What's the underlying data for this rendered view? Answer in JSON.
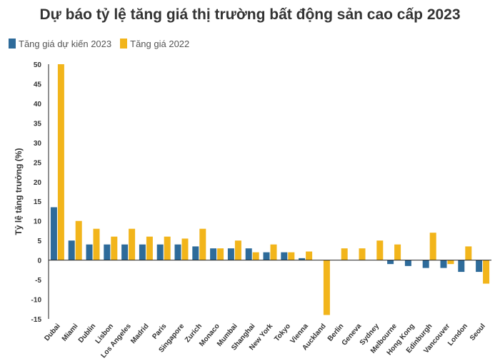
{
  "colors": {
    "forecast_2023": "#2e6b9a",
    "growth_2022": "#f2b51b",
    "axis": "#222222",
    "text": "#333333"
  },
  "chart_data": {
    "type": "bar",
    "title": "Dự báo tỷ lệ tăng giá thị trường bất động sản cao cấp 2023",
    "ylabel": "Tỷ lệ tăng trưởng (%)",
    "xlabel": "",
    "ylim": [
      -15,
      50
    ],
    "yticks": [
      "-15",
      "-10",
      "-5",
      "0",
      "5",
      "10",
      "15",
      "20",
      "25",
      "30",
      "35",
      "40",
      "45",
      "50"
    ],
    "legend_position": "top-left",
    "grid": false,
    "categories": [
      "Dubai",
      "Miami",
      "Dublin",
      "Lisbon",
      "Los Angeles",
      "Madrid",
      "Paris",
      "Singapore",
      "Zurich",
      "Monaco",
      "Mumbai",
      "Shanghai",
      "New York",
      "Tokyo",
      "Vienna",
      "Auckland",
      "Berlin",
      "Geneva",
      "Sydney",
      "Melbourne",
      "Hong Kong",
      "Edinburgh",
      "Vancouver",
      "London",
      "Seoul"
    ],
    "series": [
      {
        "name": "Tăng giá dự kiến 2023",
        "values": [
          13.5,
          5,
          4,
          4,
          4,
          4,
          4,
          4,
          3.5,
          3,
          3,
          3,
          2,
          2,
          0.5,
          0,
          0,
          0,
          0,
          -1,
          -1.5,
          -2,
          -2,
          -3,
          -3
        ]
      },
      {
        "name": "Tăng giá 2022",
        "values": [
          50,
          10,
          8,
          6,
          8,
          6,
          6,
          5.5,
          8,
          3,
          5,
          2,
          4,
          2,
          2.2,
          -14,
          3,
          3,
          5,
          4,
          0,
          7,
          -1,
          3.5,
          -6
        ]
      }
    ]
  }
}
